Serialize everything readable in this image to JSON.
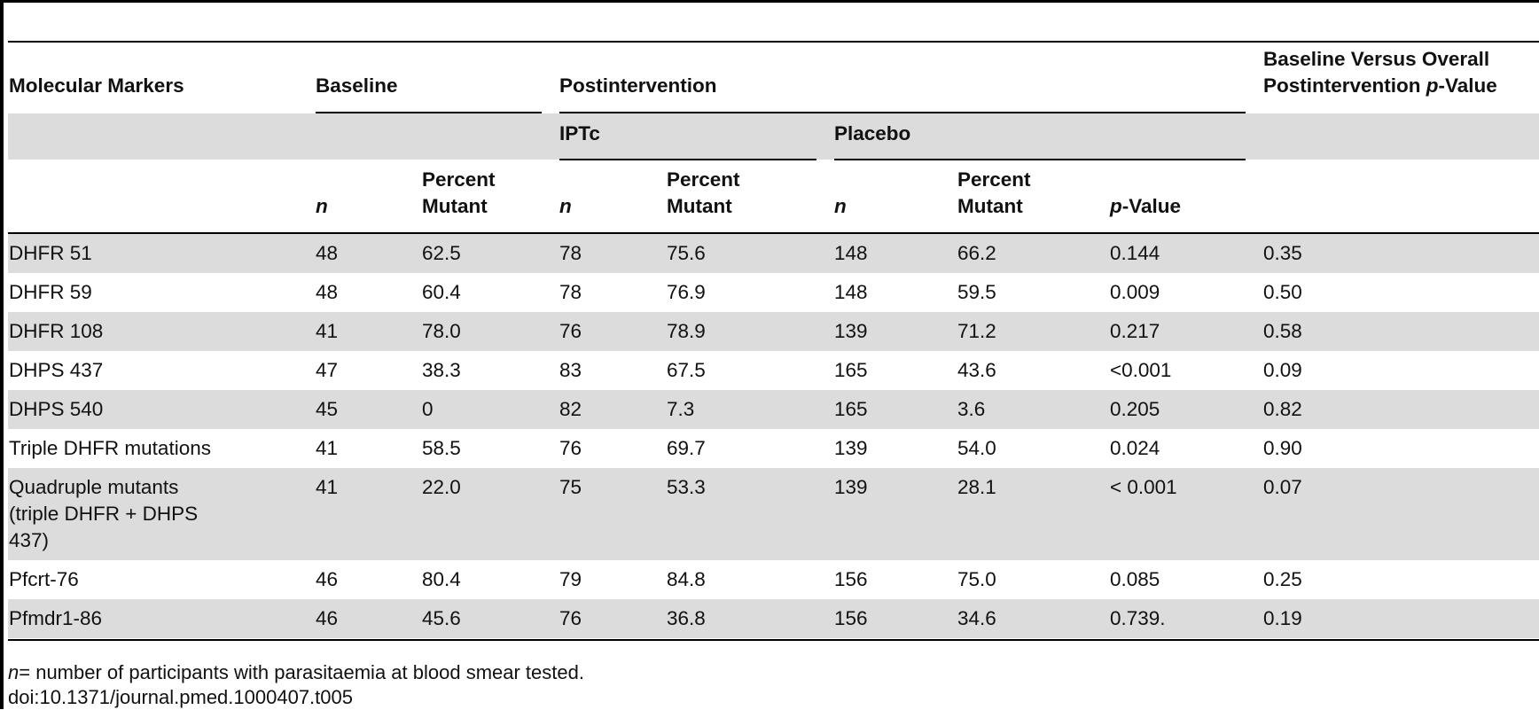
{
  "table": {
    "headers": {
      "molecular_markers": "Molecular Markers",
      "baseline": "Baseline",
      "postintervention": "Postintervention",
      "iptc": "IPTc",
      "placebo": "Placebo",
      "n": "n",
      "percent_mutant": "Percent Mutant",
      "p_italic": "p",
      "value_suffix": "-Value",
      "bvo_line1": "Baseline Versus Overall",
      "bvo_line2_prefix": "Postintervention "
    },
    "rows": [
      {
        "marker": "DHFR 51",
        "baseline_n": "48",
        "baseline_pct": "62.5",
        "iptc_n": "78",
        "iptc_pct": "75.6",
        "placebo_n": "148",
        "placebo_pct": "66.2",
        "p_value": "0.144",
        "baseline_vs_post_p": "0.35"
      },
      {
        "marker": "DHFR 59",
        "baseline_n": "48",
        "baseline_pct": "60.4",
        "iptc_n": "78",
        "iptc_pct": "76.9",
        "placebo_n": "148",
        "placebo_pct": "59.5",
        "p_value": "0.009",
        "baseline_vs_post_p": "0.50"
      },
      {
        "marker": "DHFR 108",
        "baseline_n": "41",
        "baseline_pct": "78.0",
        "iptc_n": "76",
        "iptc_pct": "78.9",
        "placebo_n": "139",
        "placebo_pct": "71.2",
        "p_value": "0.217",
        "baseline_vs_post_p": "0.58"
      },
      {
        "marker": "DHPS 437",
        "baseline_n": "47",
        "baseline_pct": "38.3",
        "iptc_n": "83",
        "iptc_pct": "67.5",
        "placebo_n": "165",
        "placebo_pct": "43.6",
        "p_value": "<0.001",
        "baseline_vs_post_p": "0.09"
      },
      {
        "marker": "DHPS 540",
        "baseline_n": "45",
        "baseline_pct": "0",
        "iptc_n": "82",
        "iptc_pct": "7.3",
        "placebo_n": "165",
        "placebo_pct": "3.6",
        "p_value": "0.205",
        "baseline_vs_post_p": "0.82"
      },
      {
        "marker": "Triple DHFR mutations",
        "baseline_n": "41",
        "baseline_pct": "58.5",
        "iptc_n": "76",
        "iptc_pct": "69.7",
        "placebo_n": "139",
        "placebo_pct": "54.0",
        "p_value": "0.024",
        "baseline_vs_post_p": "0.90"
      },
      {
        "marker": "Quadruple mutants (triple DHFR + DHPS 437)",
        "baseline_n": "41",
        "baseline_pct": "22.0",
        "iptc_n": "75",
        "iptc_pct": "53.3",
        "placebo_n": "139",
        "placebo_pct": "28.1",
        "p_value": "< 0.001",
        "baseline_vs_post_p": "0.07"
      },
      {
        "marker": "Pfcrt-76",
        "baseline_n": "46",
        "baseline_pct": "80.4",
        "iptc_n": "79",
        "iptc_pct": "84.8",
        "placebo_n": "156",
        "placebo_pct": "75.0",
        "p_value": "0.085",
        "baseline_vs_post_p": "0.25"
      },
      {
        "marker": "Pfmdr1-86",
        "baseline_n": "46",
        "baseline_pct": "45.6",
        "iptc_n": "76",
        "iptc_pct": "36.8",
        "placebo_n": "156",
        "placebo_pct": "34.6",
        "p_value": "0.739.",
        "baseline_vs_post_p": "0.19"
      }
    ]
  },
  "footnote": {
    "n_symbol": "n",
    "n_text": "= number of participants with parasitaemia at blood smear tested.",
    "doi": "doi:10.1371/journal.pmed.1000407.t005"
  }
}
